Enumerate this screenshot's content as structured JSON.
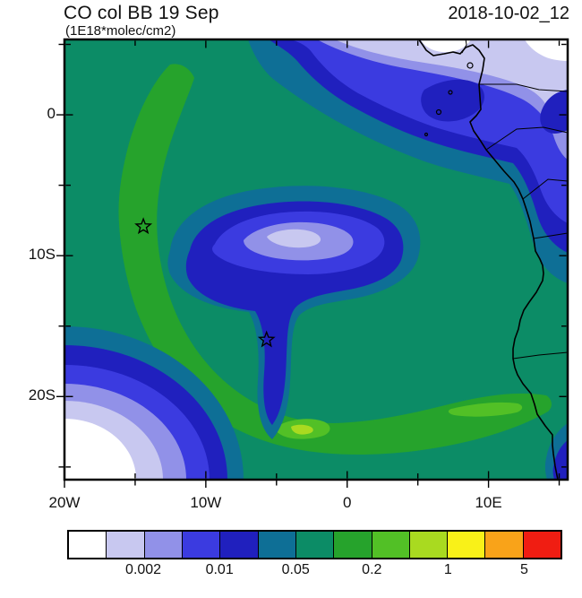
{
  "figure": {
    "title": "CO col BB 19 Sep",
    "subtitle": "(1E18*molec/cm2)",
    "timestamp": "2018-10-02_12"
  },
  "colorbar": {
    "colors": [
      "#FFFFFF",
      "#C8C8F0",
      "#9191E8",
      "#3B3BE0",
      "#2020BE",
      "#0E6F96",
      "#0C8C66",
      "#26A32C",
      "#52C026",
      "#A9DA20",
      "#F9F118",
      "#F9A319",
      "#F01D12"
    ],
    "labels": [
      "0.002",
      "0.01",
      "0.05",
      "0.2",
      "1",
      "5"
    ],
    "label_boundary_indices": [
      2,
      4,
      6,
      8,
      10,
      12
    ]
  },
  "axes": {
    "x_labels": [
      {
        "lon": -20,
        "text": "20W"
      },
      {
        "lon": -10,
        "text": "10W"
      },
      {
        "lon": 0,
        "text": "0"
      },
      {
        "lon": 10,
        "text": "10E"
      }
    ],
    "y_labels": [
      {
        "lat": 0,
        "text": "0"
      },
      {
        "lat": -10,
        "text": "10S"
      },
      {
        "lat": -20,
        "text": "20S"
      }
    ]
  },
  "chart_data": {
    "type": "heatmap",
    "subtype": "filled-contour-map",
    "title": "CO col BB 19 Sep",
    "units": "1E18*molec/cm2",
    "valid_time": "2018-10-02_12",
    "lon_range": [
      -20,
      15.6
    ],
    "lat_range": [
      -25.9,
      5.35
    ],
    "x_major_tick_lons": [
      -20,
      -10,
      0,
      10
    ],
    "x_minor_tick_lons": [
      -15,
      -5,
      5,
      15
    ],
    "y_major_tick_lats": [
      0,
      -10,
      -20
    ],
    "y_minor_tick_lats": [
      5,
      -5,
      -15,
      -25
    ],
    "contour_levels": [
      0.001,
      0.002,
      0.005,
      0.01,
      0.02,
      0.05,
      0.1,
      0.2,
      0.5,
      1,
      2,
      5
    ],
    "labeled_levels": [
      0.002,
      0.01,
      0.05,
      0.2,
      1,
      5
    ],
    "markers": [
      {
        "symbol": "star",
        "lon": -14.42,
        "lat": -7.93
      },
      {
        "symbol": "star",
        "lon": -5.7,
        "lat": -15.97
      }
    ],
    "field_summary": [
      {
        "region": "northeast quadrant / Gulf of Guinea",
        "range": "0.001-0.02, minima below 0.002 over coastal Nigeria-Cameroon"
      },
      {
        "region": "closed minimum near 8S 5W over open ocean",
        "range": "0.002-0.02"
      },
      {
        "region": "curved plume band from ~0 13W sweeping south then east toward the Namibian coast",
        "range": "0.1-0.5, local 0.5-1 near 22S 6W"
      },
      {
        "region": "southwest corner minimum",
        "range": "below 0.001 to 0.01"
      },
      {
        "region": "background ocean and land",
        "range": "0.05-0.1"
      }
    ]
  }
}
